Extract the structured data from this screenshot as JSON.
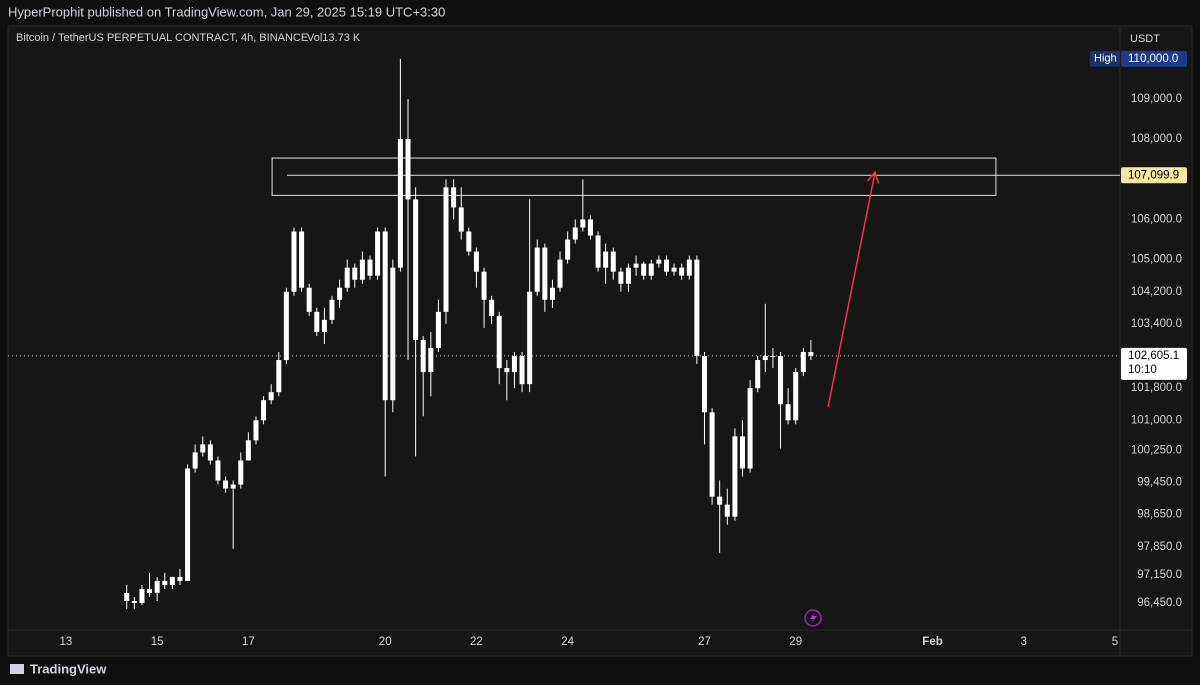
{
  "publisher": "HyperProphit published on TradingView.com, Jan 29, 2025 15:19 UTC+3:30",
  "branding": "TradingView",
  "chart_data": {
    "type": "candlestick",
    "title": "Bitcoin / TetherUS PERPETUAL CONTRACT, 4h, BINANCE",
    "volume_label": "Vol13.73 K",
    "currency": "USDT",
    "color": "#ffffff",
    "grid": false,
    "xlim": [
      11.73,
      36.11
    ],
    "xticks": [
      13,
      15,
      17,
      20,
      22,
      24,
      27,
      29,
      {
        "value": 32,
        "label": "Feb"
      },
      {
        "value": 34,
        "label": "3"
      },
      {
        "value": 36,
        "label": "5"
      }
    ],
    "ylim": [
      95828,
      110718
    ],
    "yticks": [
      {
        "value": 109000,
        "label": "109,000.0"
      },
      {
        "value": 108000,
        "label": "108,000.0"
      },
      {
        "value": 106000,
        "label": "106,000.0"
      },
      {
        "value": 105000,
        "label": "105,000.0"
      },
      {
        "value": 104200,
        "label": "104,200.0"
      },
      {
        "value": 103400,
        "label": "103,400.0"
      },
      {
        "value": 101800,
        "label": "101,800.0"
      },
      {
        "value": 101000,
        "label": "101,000.0"
      },
      {
        "value": 100250,
        "label": "100,250.0"
      },
      {
        "value": 99450,
        "label": "99,450.0"
      },
      {
        "value": 98650,
        "label": "98,650.0"
      },
      {
        "value": 97850,
        "label": "97,850.0"
      },
      {
        "value": 97150,
        "label": "97,150.0"
      },
      {
        "value": 96450,
        "label": "96,450.0"
      }
    ],
    "x": [
      14.333,
      14.5,
      14.667,
      14.833,
      15,
      15.167,
      15.333,
      15.5,
      15.667,
      15.833,
      16,
      16.167,
      16.333,
      16.5,
      16.667,
      16.833,
      17,
      17.167,
      17.333,
      17.5,
      17.667,
      17.833,
      18,
      18.167,
      18.333,
      18.5,
      18.667,
      18.833,
      19,
      19.167,
      19.333,
      19.5,
      19.667,
      19.833,
      20,
      20.167,
      20.333,
      20.5,
      20.667,
      20.833,
      21,
      21.167,
      21.333,
      21.5,
      21.667,
      21.833,
      22,
      22.167,
      22.333,
      22.5,
      22.667,
      22.833,
      23,
      23.167,
      23.333,
      23.5,
      23.667,
      23.833,
      24,
      24.167,
      24.333,
      24.5,
      24.667,
      24.833,
      25,
      25.167,
      25.333,
      25.5,
      25.667,
      25.833,
      26,
      26.167,
      26.333,
      26.5,
      26.667,
      26.833,
      27,
      27.167,
      27.333,
      27.5,
      27.667,
      27.833,
      28,
      28.167,
      28.333,
      28.5,
      28.667,
      28.833,
      29,
      29.167,
      29.333
    ],
    "open": [
      96700,
      96500,
      96450,
      96800,
      96700,
      97000,
      96900,
      97100,
      97000,
      99800,
      100200,
      100400,
      100000,
      99500,
      99300,
      99400,
      100000,
      100500,
      101000,
      101500,
      101700,
      102500,
      104200,
      105700,
      104300,
      103700,
      103200,
      103500,
      104000,
      104300,
      104800,
      104500,
      105000,
      104600,
      105700,
      101500,
      104800,
      108000,
      106500,
      103000,
      102200,
      102800,
      103700,
      106800,
      106300,
      105700,
      105200,
      104700,
      104000,
      103600,
      102300,
      102200,
      102600,
      101900,
      104200,
      105300,
      104000,
      104300,
      105000,
      105500,
      105800,
      106000,
      105600,
      104800,
      105200,
      104700,
      104400,
      104800,
      104900,
      104600,
      104900,
      105000,
      104700,
      104800,
      104600,
      105000,
      102600,
      101200,
      99100,
      98900,
      98600,
      100600,
      99800,
      101800,
      102500,
      102600,
      102600,
      101400,
      101000,
      102200,
      102700
    ],
    "high": [
      96900,
      96600,
      96900,
      97200,
      97100,
      97200,
      97100,
      97300,
      99900,
      100400,
      100600,
      100500,
      100100,
      99600,
      99500,
      100200,
      100700,
      101100,
      101600,
      101900,
      102700,
      104300,
      105800,
      105800,
      104400,
      103800,
      103800,
      104100,
      104500,
      105000,
      104900,
      105200,
      105100,
      105800,
      105800,
      105000,
      110000,
      109000,
      106800,
      103100,
      103200,
      104000,
      107000,
      107000,
      106800,
      105800,
      105300,
      104800,
      104100,
      103700,
      102500,
      102700,
      102700,
      106500,
      105500,
      105400,
      104500,
      105200,
      105700,
      106000,
      107000,
      106100,
      105700,
      105400,
      105300,
      104800,
      104900,
      105100,
      104950,
      105000,
      105100,
      105100,
      104900,
      104900,
      105100,
      105100,
      102700,
      101300,
      99500,
      99300,
      100800,
      101000,
      102000,
      102600,
      103900,
      102800,
      102700,
      101800,
      102300,
      102800,
      103000
    ],
    "low": [
      96300,
      96300,
      96400,
      96600,
      96500,
      96800,
      96800,
      96900,
      97000,
      99700,
      100100,
      99900,
      99400,
      99200,
      97800,
      99300,
      100000,
      100400,
      100900,
      101400,
      101600,
      102400,
      104100,
      104200,
      103600,
      103100,
      102900,
      103400,
      103800,
      104200,
      104300,
      104400,
      104500,
      104500,
      99600,
      101200,
      104700,
      102500,
      100100,
      101100,
      101600,
      102700,
      103400,
      106000,
      105500,
      105100,
      104300,
      103300,
      103400,
      101900,
      101500,
      101800,
      101700,
      101700,
      104100,
      103700,
      103800,
      104200,
      104900,
      105400,
      105700,
      105500,
      104700,
      104400,
      104500,
      104200,
      104200,
      104600,
      104500,
      104500,
      104800,
      104600,
      104600,
      104500,
      104500,
      102400,
      100400,
      98900,
      97700,
      98400,
      98500,
      99600,
      99700,
      101700,
      102200,
      102300,
      100300,
      100900,
      100900,
      102100,
      102500
    ],
    "close": [
      96500,
      96450,
      96800,
      96700,
      97000,
      96900,
      97100,
      97000,
      99800,
      100200,
      100400,
      100000,
      99500,
      99300,
      99400,
      100000,
      100500,
      101000,
      101500,
      101700,
      102500,
      104200,
      105700,
      104300,
      103700,
      103200,
      103500,
      104000,
      104300,
      104800,
      104500,
      105000,
      104600,
      105700,
      101500,
      104800,
      108000,
      106500,
      103000,
      102200,
      102800,
      103700,
      106800,
      106300,
      105700,
      105200,
      104700,
      104000,
      103600,
      102300,
      102200,
      102600,
      101900,
      104200,
      105300,
      104000,
      104300,
      105000,
      105500,
      105800,
      106000,
      105600,
      104800,
      105200,
      104700,
      104400,
      104800,
      104900,
      104600,
      104900,
      105000,
      104700,
      104800,
      104600,
      105000,
      102600,
      101200,
      99100,
      98900,
      98600,
      100600,
      99800,
      101800,
      102500,
      102600,
      102600,
      101400,
      101000,
      102200,
      102700,
      102605.1
    ],
    "high_marker": {
      "label": "High",
      "value": 110000,
      "value_label": "110,000.0"
    },
    "price_line": {
      "value": 107099.9,
      "value_label": "107,099.9",
      "x_start": 17.85,
      "color": "#d9cd86"
    },
    "last_price": {
      "value": 102605.1,
      "value_label": "102,605.1",
      "countdown": "10:10"
    },
    "zone": {
      "x": [
        17.52,
        33.39
      ],
      "y": [
        106600,
        107530
      ]
    },
    "arrow": {
      "x": [
        29.71,
        30.74
      ],
      "y": [
        101330,
        107180
      ],
      "color": "#f23645"
    }
  }
}
